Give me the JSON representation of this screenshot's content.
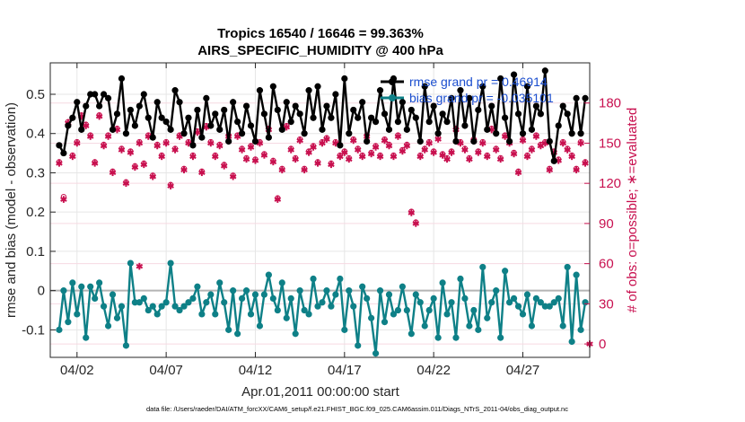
{
  "chart_data": {
    "type": "line",
    "title": "Tropics 16540 / 16646 = 99.363%",
    "subtitle": "AIRS_SPECIFIC_HUMIDITY @ 400 hPa",
    "xlabel": "Apr.01,2011 00:00:00 start",
    "ylabel": "rmse and bias (model - observation)",
    "ylabel_right": "# of obs: o=possible; ∗=evaluated",
    "footnote": "data file: /Users/raeder/DAI/ATM_forcXX/CAM6_setup/f.e21.FHIST_BGC.f09_025.CAM6assim.011/Diags_NTrS_2011-04/obs_diag_output.nc",
    "xlim": [
      0.5,
      30.75
    ],
    "ylim": [
      -0.17,
      0.58
    ],
    "ylim_right": [
      -10,
      210
    ],
    "x_ticks": [
      2,
      7,
      12,
      17,
      22,
      27
    ],
    "x_tick_labels": [
      "04/02",
      "04/07",
      "04/12",
      "04/17",
      "04/22",
      "04/27"
    ],
    "y_ticks": [
      -0.1,
      0,
      0.1,
      0.2,
      0.3,
      0.4,
      0.5
    ],
    "y_tick_labels": [
      "-0.1",
      "0",
      "0.1",
      "0.2",
      "0.3",
      "0.4",
      "0.5"
    ],
    "y_right_ticks": [
      0,
      30,
      60,
      90,
      120,
      150,
      180
    ],
    "y_right_tick_labels": [
      "0",
      "30",
      "60",
      "90",
      "120",
      "150",
      "180"
    ],
    "zero_line": 0,
    "legend": [
      {
        "label": "rmse grand pr = 0.46914",
        "color": "#000000",
        "marker": "filled-circle"
      },
      {
        "label": "bias grand pr = -0.035101",
        "color": "#0e8087",
        "marker": "filled-circle"
      }
    ],
    "x": [
      1.0,
      1.25,
      1.5,
      1.75,
      2.0,
      2.25,
      2.5,
      2.75,
      3.0,
      3.25,
      3.5,
      3.75,
      4.0,
      4.25,
      4.5,
      4.75,
      5.0,
      5.25,
      5.5,
      5.75,
      6.0,
      6.25,
      6.5,
      6.75,
      7.0,
      7.25,
      7.5,
      7.75,
      8.0,
      8.25,
      8.5,
      8.75,
      9.0,
      9.25,
      9.5,
      9.75,
      10.0,
      10.25,
      10.5,
      10.75,
      11.0,
      11.25,
      11.5,
      11.75,
      12.0,
      12.25,
      12.5,
      12.75,
      13.0,
      13.25,
      13.5,
      13.75,
      14.0,
      14.25,
      14.5,
      14.75,
      15.0,
      15.25,
      15.5,
      15.75,
      16.0,
      16.25,
      16.5,
      16.75,
      17.0,
      17.25,
      17.5,
      17.75,
      18.0,
      18.25,
      18.5,
      18.75,
      19.0,
      19.25,
      19.5,
      19.75,
      20.0,
      20.25,
      20.5,
      20.75,
      21.0,
      21.25,
      21.5,
      21.75,
      22.0,
      22.25,
      22.5,
      22.75,
      23.0,
      23.25,
      23.5,
      23.75,
      24.0,
      24.25,
      24.5,
      24.75,
      25.0,
      25.25,
      25.5,
      25.75,
      26.0,
      26.25,
      26.5,
      26.75,
      27.0,
      27.25,
      27.5,
      27.75,
      28.0,
      28.25,
      28.5,
      28.75,
      29.0,
      29.25,
      29.5,
      29.75,
      30.0,
      30.25,
      30.5
    ],
    "series": [
      {
        "name": "rmse",
        "axis": "left",
        "color": "#000000",
        "values": [
          0.37,
          0.35,
          0.42,
          0.44,
          0.48,
          0.41,
          0.47,
          0.5,
          0.5,
          0.47,
          0.5,
          0.49,
          0.41,
          0.45,
          0.54,
          0.4,
          0.46,
          0.42,
          0.47,
          0.5,
          0.44,
          0.39,
          0.48,
          0.44,
          0.43,
          0.41,
          0.51,
          0.48,
          0.4,
          0.44,
          0.37,
          0.46,
          0.39,
          0.49,
          0.42,
          0.45,
          0.41,
          0.46,
          0.38,
          0.48,
          0.43,
          0.4,
          0.47,
          0.42,
          0.38,
          0.51,
          0.45,
          0.39,
          0.52,
          0.46,
          0.41,
          0.48,
          0.43,
          0.47,
          0.45,
          0.4,
          0.51,
          0.44,
          0.52,
          0.41,
          0.47,
          0.44,
          0.5,
          0.37,
          0.54,
          0.4,
          0.46,
          0.44,
          0.48,
          0.38,
          0.44,
          0.43,
          0.51,
          0.45,
          0.41,
          0.54,
          0.43,
          0.48,
          0.41,
          0.46,
          0.44,
          0.38,
          0.52,
          0.43,
          0.47,
          0.4,
          0.45,
          0.43,
          0.49,
          0.38,
          0.51,
          0.42,
          0.49,
          0.38,
          0.46,
          0.52,
          0.41,
          0.47,
          0.4,
          0.54,
          0.44,
          0.38,
          0.55,
          0.45,
          0.4,
          0.52,
          0.41,
          0.47,
          0.45,
          0.56,
          0.38,
          0.33,
          0.42,
          0.47,
          0.45,
          0.4,
          0.49,
          0.4,
          0.49
        ]
      },
      {
        "name": "bias",
        "axis": "left",
        "color": "#0e8087",
        "values": [
          -0.1,
          0.0,
          -0.08,
          0.02,
          -0.06,
          0.01,
          -0.12,
          0.01,
          -0.02,
          0.02,
          -0.04,
          -0.09,
          -0.01,
          -0.07,
          -0.04,
          -0.14,
          0.07,
          -0.03,
          -0.03,
          -0.02,
          -0.05,
          -0.04,
          -0.06,
          -0.04,
          -0.03,
          0.07,
          -0.04,
          -0.05,
          -0.04,
          -0.03,
          -0.02,
          0.01,
          -0.06,
          -0.03,
          -0.01,
          -0.06,
          0.02,
          -0.03,
          -0.1,
          0.0,
          -0.11,
          -0.02,
          0.0,
          -0.06,
          -0.01,
          -0.09,
          -0.01,
          0.04,
          -0.02,
          -0.05,
          0.02,
          -0.07,
          -0.02,
          -0.11,
          0.0,
          -0.05,
          -0.06,
          0.03,
          -0.04,
          -0.03,
          0.0,
          -0.04,
          -0.01,
          0.03,
          -0.1,
          0.0,
          -0.04,
          -0.14,
          0.01,
          -0.02,
          -0.07,
          -0.16,
          0.0,
          -0.08,
          -0.01,
          -0.06,
          -0.05,
          0.01,
          -0.05,
          -0.11,
          -0.01,
          -0.03,
          -0.09,
          -0.05,
          -0.02,
          -0.12,
          0.02,
          -0.06,
          -0.03,
          -0.12,
          0.03,
          -0.02,
          -0.09,
          -0.05,
          -0.1,
          0.06,
          -0.07,
          -0.03,
          0.0,
          -0.12,
          0.05,
          -0.03,
          -0.02,
          -0.04,
          -0.06,
          -0.01,
          -0.09,
          -0.02,
          -0.03,
          -0.04,
          -0.04,
          -0.03,
          -0.02,
          -0.09,
          0.06,
          -0.13,
          0.04,
          -0.1,
          -0.03
        ]
      },
      {
        "name": "obs evaluated",
        "axis": "right",
        "color": "#c8104f",
        "values": [
          135,
          108,
          165,
          140,
          150,
          170,
          163,
          155,
          135,
          170,
          148,
          155,
          128,
          160,
          145,
          120,
          143,
          132,
          150,
          134,
          155,
          125,
          148,
          140,
          150,
          118,
          145,
          155,
          130,
          150,
          140,
          158,
          128,
          162,
          150,
          140,
          148,
          133,
          155,
          125,
          155,
          145,
          138,
          147,
          137,
          150,
          141,
          160,
          136,
          108,
          130,
          162,
          145,
          138,
          152,
          130,
          143,
          147,
          135,
          150,
          153,
          134,
          150,
          140,
          143,
          138,
          152,
          145,
          140,
          155,
          142,
          147,
          140,
          152,
          148,
          140,
          155,
          144,
          148,
          98,
          90,
          140,
          145,
          150,
          143,
          153,
          141,
          138,
          143,
          160,
          150,
          145,
          138,
          152,
          143,
          150,
          140,
          160,
          145,
          138,
          155,
          150,
          142,
          128,
          152,
          140,
          145,
          155,
          148,
          150,
          130,
          143,
          137,
          150,
          145,
          140,
          130,
          150,
          135
        ]
      },
      {
        "name": "obs possible",
        "axis": "right",
        "color": "#c8104f",
        "values": [
          136,
          110,
          166,
          141,
          151,
          171,
          164,
          156,
          136,
          171,
          149,
          156,
          129,
          161,
          146,
          121,
          144,
          133,
          151,
          135,
          156,
          126,
          149,
          141,
          151,
          119,
          146,
          156,
          131,
          151,
          141,
          159,
          129,
          163,
          151,
          141,
          149,
          134,
          156,
          126,
          156,
          146,
          139,
          148,
          138,
          151,
          142,
          161,
          137,
          109,
          131,
          163,
          146,
          139,
          153,
          131,
          144,
          148,
          136,
          151,
          154,
          135,
          151,
          141,
          144,
          139,
          153,
          146,
          141,
          156,
          143,
          148,
          141,
          153,
          149,
          141,
          156,
          145,
          149,
          99,
          91,
          141,
          146,
          151,
          144,
          154,
          142,
          139,
          144,
          161,
          151,
          146,
          139,
          153,
          144,
          151,
          141,
          161,
          146,
          139,
          156,
          151,
          143,
          129,
          153,
          141,
          146,
          156,
          149,
          151,
          131,
          144,
          138,
          151,
          146,
          141,
          131,
          151,
          136
        ]
      }
    ],
    "outliers": [
      {
        "series": "obs evaluated",
        "x": 5.5,
        "value": 58
      },
      {
        "series": "obs evaluated",
        "x": 30.75,
        "value": 0
      }
    ]
  }
}
